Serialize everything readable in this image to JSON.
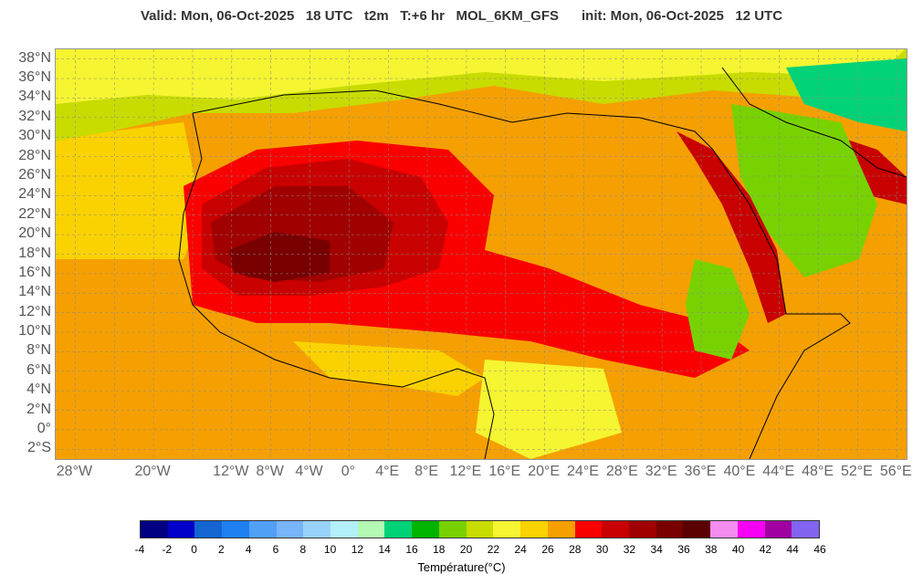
{
  "header": {
    "title": "Valid: Mon, 06-Oct-2025   18 UTC   t2m   T:+6 hr   MOL_6KM_GFS      init: Mon, 06-Oct-2025   12 UTC"
  },
  "map": {
    "lat_labels": [
      "38°N",
      "36°N",
      "34°N",
      "32°N",
      "30°N",
      "28°N",
      "26°N",
      "24°N",
      "22°N",
      "20°N",
      "18°N",
      "16°N",
      "14°N",
      "12°N",
      "10°N",
      "8°N",
      "6°N",
      "4°N",
      "2°N",
      "0°",
      "2°S"
    ],
    "lon_labels": [
      "28°W",
      "20°W",
      "12°W",
      "8°W",
      "4°W",
      "0°",
      "4°E",
      "8°E",
      "12°E",
      "16°E",
      "20°E",
      "24°E",
      "28°E",
      "32°E",
      "36°E",
      "40°E",
      "44°E",
      "48°E",
      "52°E",
      "56°E"
    ],
    "lon_values": [
      -28,
      -20,
      -12,
      -8,
      -4,
      0,
      4,
      8,
      12,
      16,
      20,
      24,
      28,
      32,
      36,
      40,
      44,
      48,
      52,
      56
    ],
    "extent": {
      "lon_min": -30,
      "lon_max": 57,
      "lat_min": -3,
      "lat_max": 39
    }
  },
  "colorbar": {
    "label": "Température(°C)",
    "ticks": [
      "-4",
      "-2",
      "0",
      "2",
      "4",
      "6",
      "8",
      "10",
      "12",
      "14",
      "16",
      "18",
      "20",
      "22",
      "24",
      "26",
      "28",
      "30",
      "32",
      "34",
      "36",
      "38",
      "40",
      "42",
      "44",
      "46"
    ],
    "colors": [
      "#000080",
      "#0000c8",
      "#1464d2",
      "#1e80f0",
      "#50a0f5",
      "#78b4f8",
      "#96d2fa",
      "#b4f0fa",
      "#b4fab4",
      "#00d278",
      "#00b400",
      "#78d200",
      "#c8dc00",
      "#f5f532",
      "#fad200",
      "#f5a000",
      "#fa0000",
      "#c80000",
      "#a00000",
      "#780000",
      "#5a0000",
      "#f58cf0",
      "#f500f5",
      "#a000a0",
      "#8264f0"
    ]
  }
}
